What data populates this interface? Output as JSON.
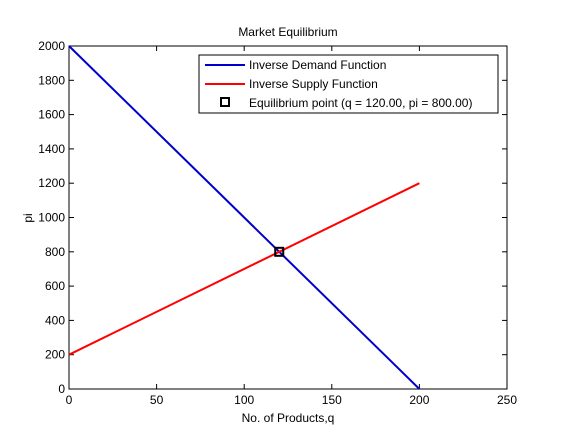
{
  "chart_data": {
    "type": "line",
    "title": "Market Equilibrium",
    "xlabel": "No. of Products,q",
    "ylabel": "pi",
    "xlim": [
      0,
      250
    ],
    "ylim": [
      0,
      2000
    ],
    "xticks": [
      0,
      50,
      100,
      150,
      200,
      250
    ],
    "yticks": [
      0,
      200,
      400,
      600,
      800,
      1000,
      1200,
      1400,
      1600,
      1800,
      2000
    ],
    "xtick_labels": [
      "0",
      "50",
      "100",
      "150",
      "200",
      "250"
    ],
    "ytick_labels": [
      "0",
      "200",
      "400",
      "600",
      "800",
      "1000",
      "1200",
      "1400",
      "1600",
      "1800",
      "2000"
    ],
    "grid": false,
    "legend_position": "top-right",
    "series": [
      {
        "name": "Inverse Demand Function",
        "color": "#0000cc",
        "x": [
          0,
          200
        ],
        "y": [
          2000,
          0
        ]
      },
      {
        "name": "Inverse Supply Function",
        "color": "#ff0000",
        "x": [
          0,
          200
        ],
        "y": [
          200,
          1200
        ]
      }
    ],
    "equilibrium": {
      "name": "Equilibrium point (q = 120.00, pi = 800.00)",
      "x": 120,
      "y": 800,
      "marker": "square",
      "color": "#000000"
    }
  }
}
